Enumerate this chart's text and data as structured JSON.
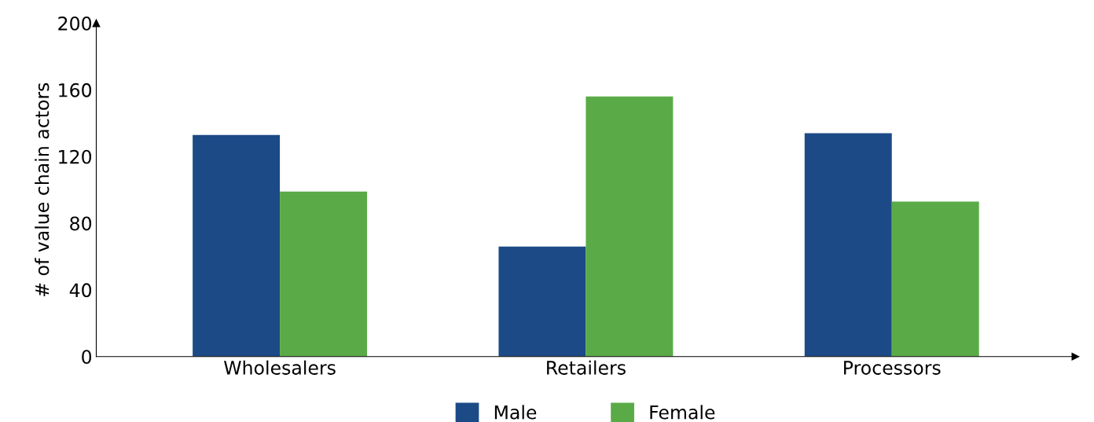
{
  "chart_data": {
    "type": "bar",
    "ylabel": "# of value chain actors",
    "categories": [
      "Wholesalers",
      "Retailers",
      "Processors"
    ],
    "series": [
      {
        "name": "Male",
        "color": "#1c4a87",
        "values": [
          133,
          66,
          134
        ]
      },
      {
        "name": "Female",
        "color": "#5aab47",
        "values": [
          99,
          156,
          93
        ]
      }
    ],
    "ylim": [
      0,
      200
    ],
    "yticks": [
      0,
      40,
      80,
      120,
      160,
      200
    ],
    "grid": false,
    "legend": "bottom"
  }
}
